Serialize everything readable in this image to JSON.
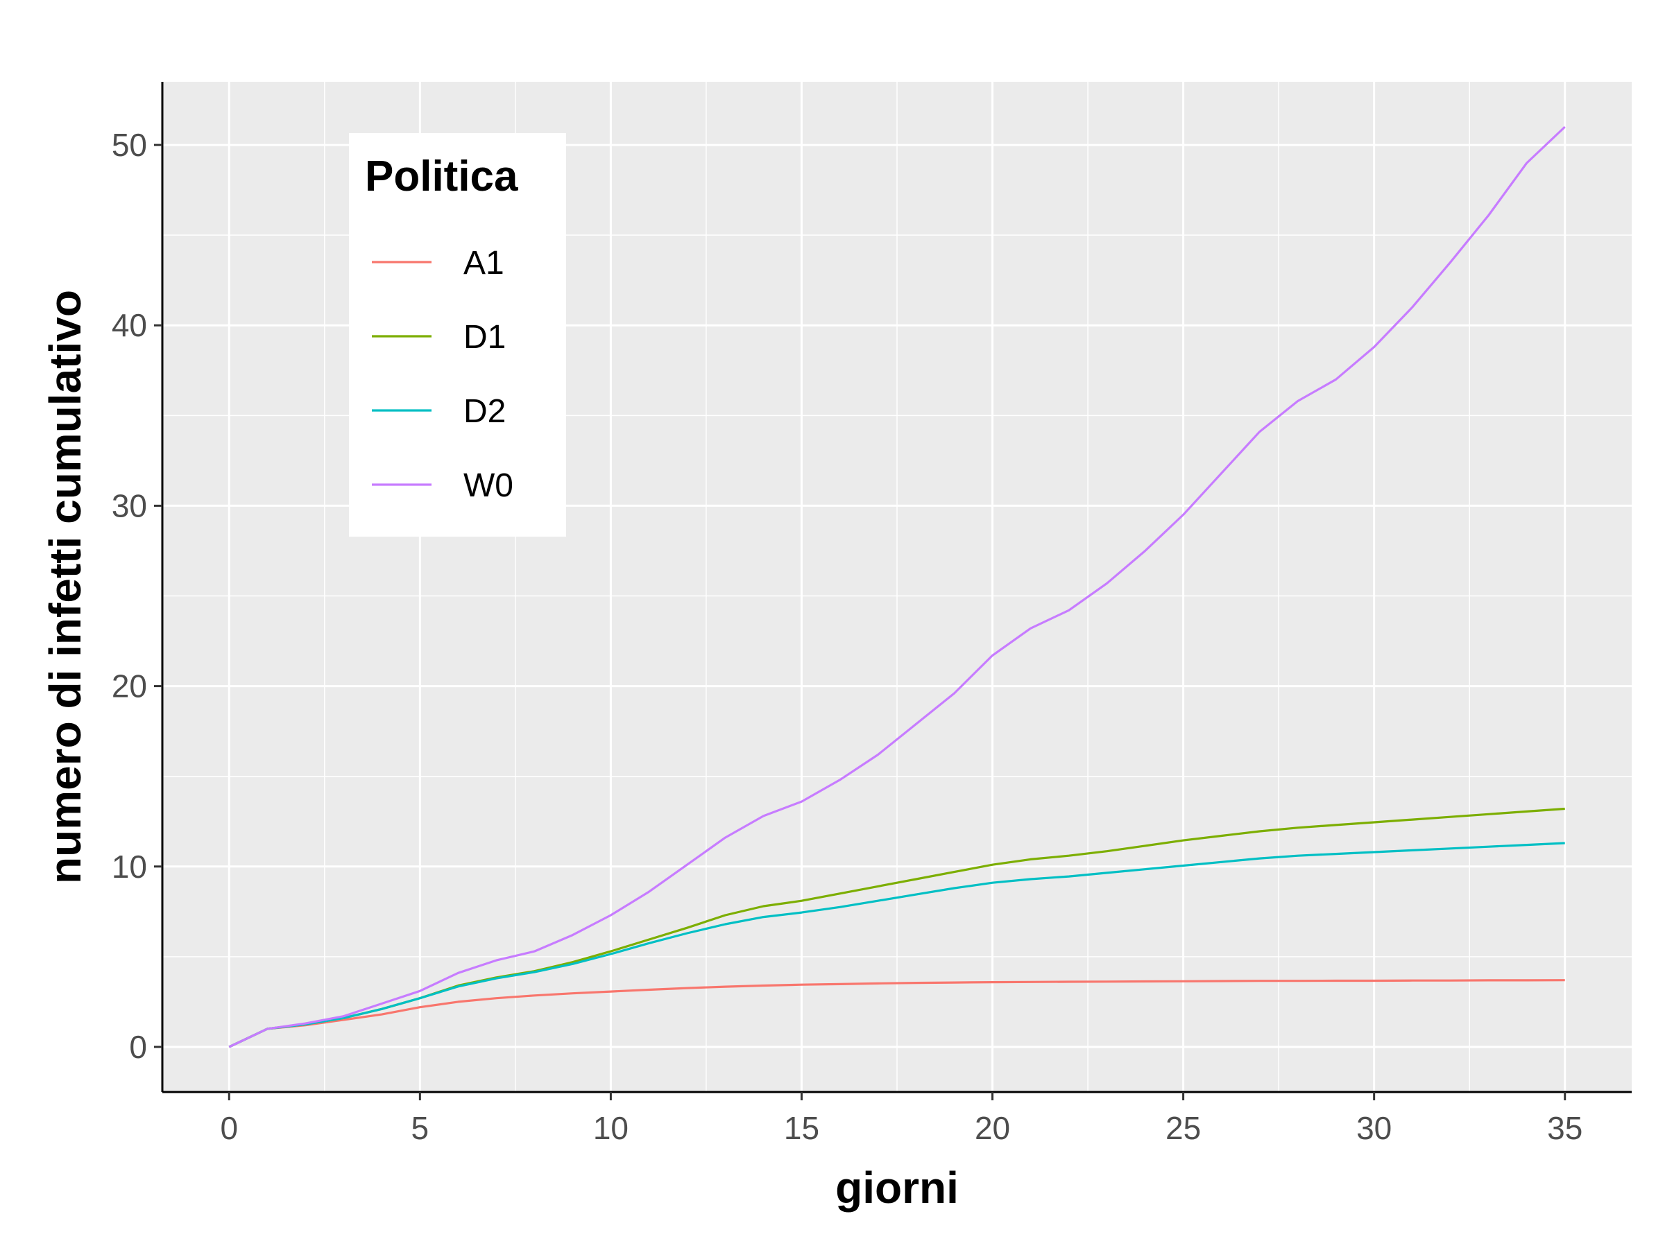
{
  "chart_data": {
    "type": "line",
    "title": "",
    "xlabel": "giorni",
    "ylabel": "numero di infetti cumulativo",
    "xlim": [
      -1.75,
      36.75
    ],
    "ylim": [
      -2.5,
      53.5
    ],
    "x_ticks": [
      0,
      5,
      10,
      15,
      20,
      25,
      30,
      35
    ],
    "x_tick_labels": [
      "0",
      "5",
      "10",
      "15",
      "20",
      "25",
      "30",
      "35"
    ],
    "y_ticks": [
      0,
      10,
      20,
      30,
      40,
      50
    ],
    "y_tick_labels": [
      "0",
      "10",
      "20",
      "30",
      "40",
      "50"
    ],
    "grid": true,
    "legend": {
      "title": "Politica",
      "position": "top-left"
    },
    "x": [
      0,
      1,
      2,
      3,
      4,
      5,
      6,
      7,
      8,
      9,
      10,
      11,
      12,
      13,
      14,
      15,
      16,
      17,
      18,
      19,
      20,
      21,
      22,
      23,
      24,
      25,
      26,
      27,
      28,
      29,
      30,
      31,
      32,
      33,
      34,
      35
    ],
    "series": [
      {
        "name": "A1",
        "color": "#F8766D",
        "values": [
          0,
          1.0,
          1.2,
          1.5,
          1.8,
          2.2,
          2.5,
          2.7,
          2.85,
          2.97,
          3.07,
          3.17,
          3.26,
          3.34,
          3.4,
          3.45,
          3.48,
          3.52,
          3.55,
          3.57,
          3.59,
          3.6,
          3.61,
          3.62,
          3.63,
          3.64,
          3.65,
          3.66,
          3.66,
          3.67,
          3.67,
          3.68,
          3.68,
          3.69,
          3.69,
          3.7
        ]
      },
      {
        "name": "D1",
        "color": "#7CAE00",
        "values": [
          0,
          1.0,
          1.25,
          1.6,
          2.1,
          2.7,
          3.4,
          3.85,
          4.2,
          4.7,
          5.3,
          5.95,
          6.6,
          7.3,
          7.8,
          8.1,
          8.5,
          8.9,
          9.3,
          9.7,
          10.1,
          10.4,
          10.6,
          10.85,
          11.15,
          11.45,
          11.7,
          11.95,
          12.15,
          12.3,
          12.45,
          12.6,
          12.75,
          12.9,
          13.05,
          13.2
        ]
      },
      {
        "name": "D2",
        "color": "#00BFC4",
        "values": [
          0,
          1.0,
          1.25,
          1.6,
          2.1,
          2.7,
          3.35,
          3.8,
          4.15,
          4.6,
          5.15,
          5.75,
          6.3,
          6.8,
          7.2,
          7.45,
          7.75,
          8.1,
          8.45,
          8.8,
          9.1,
          9.3,
          9.45,
          9.65,
          9.85,
          10.05,
          10.25,
          10.45,
          10.6,
          10.7,
          10.8,
          10.9,
          11.0,
          11.1,
          11.2,
          11.3
        ]
      },
      {
        "name": "W0",
        "color": "#C77CFF",
        "values": [
          0,
          1.0,
          1.3,
          1.7,
          2.4,
          3.1,
          4.1,
          4.8,
          5.3,
          6.2,
          7.3,
          8.6,
          10.1,
          11.6,
          12.8,
          13.6,
          14.8,
          16.2,
          17.9,
          19.6,
          21.7,
          23.2,
          24.2,
          25.7,
          27.5,
          29.5,
          31.8,
          34.1,
          35.8,
          37.0,
          38.8,
          41.0,
          43.5,
          46.1,
          49.0,
          51.0
        ]
      }
    ]
  }
}
